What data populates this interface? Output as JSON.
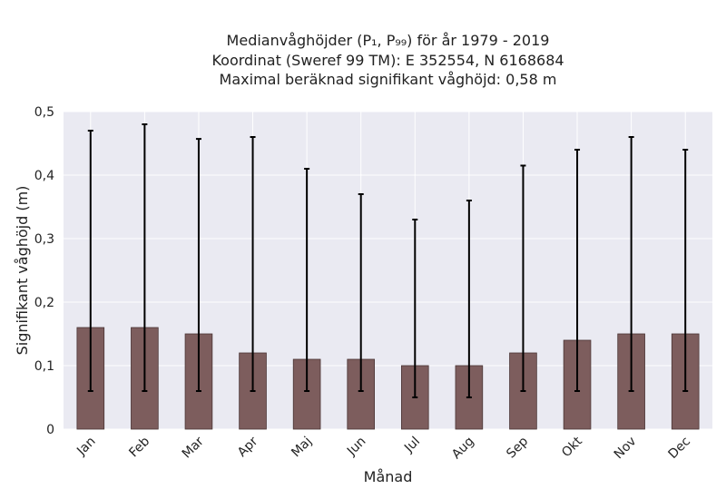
{
  "chart_data": {
    "type": "bar",
    "title_lines": [
      "Medianvåghöjder (P₁, P₉₉) för år 1979 - 2019",
      "Koordinat (Sweref 99 TM): E 352554, N 6168684",
      "Maximal beräknad signifikant våghöjd: 0,58 m"
    ],
    "xlabel": "Månad",
    "ylabel": "Signifikant våghöjd (m)",
    "categories": [
      "Jan",
      "Feb",
      "Mar",
      "Apr",
      "Maj",
      "Jun",
      "Jul",
      "Aug",
      "Sep",
      "Okt",
      "Nov",
      "Dec"
    ],
    "series": [
      {
        "values": [
          0.16,
          0.16,
          0.15,
          0.12,
          0.11,
          0.11,
          0.1,
          0.1,
          0.12,
          0.14,
          0.15,
          0.15
        ],
        "error_low": [
          0.06,
          0.06,
          0.06,
          0.06,
          0.06,
          0.06,
          0.05,
          0.05,
          0.06,
          0.06,
          0.06,
          0.06
        ],
        "error_high": [
          0.47,
          0.48,
          0.457,
          0.46,
          0.41,
          0.37,
          0.33,
          0.36,
          0.415,
          0.44,
          0.46,
          0.44
        ]
      }
    ],
    "ylim": [
      0,
      0.5
    ],
    "yticks": [
      0,
      0.1,
      0.2,
      0.3,
      0.4,
      0.5
    ],
    "ytick_labels": [
      "0",
      "0,1",
      "0,2",
      "0,3",
      "0,4",
      "0,5"
    ],
    "grid": true,
    "colors": {
      "bar": "#7d5d5d",
      "bar_edge": "#4a3535",
      "error": "#000000",
      "plot_bg": "#eaeaf2",
      "grid": "#ffffff"
    }
  }
}
